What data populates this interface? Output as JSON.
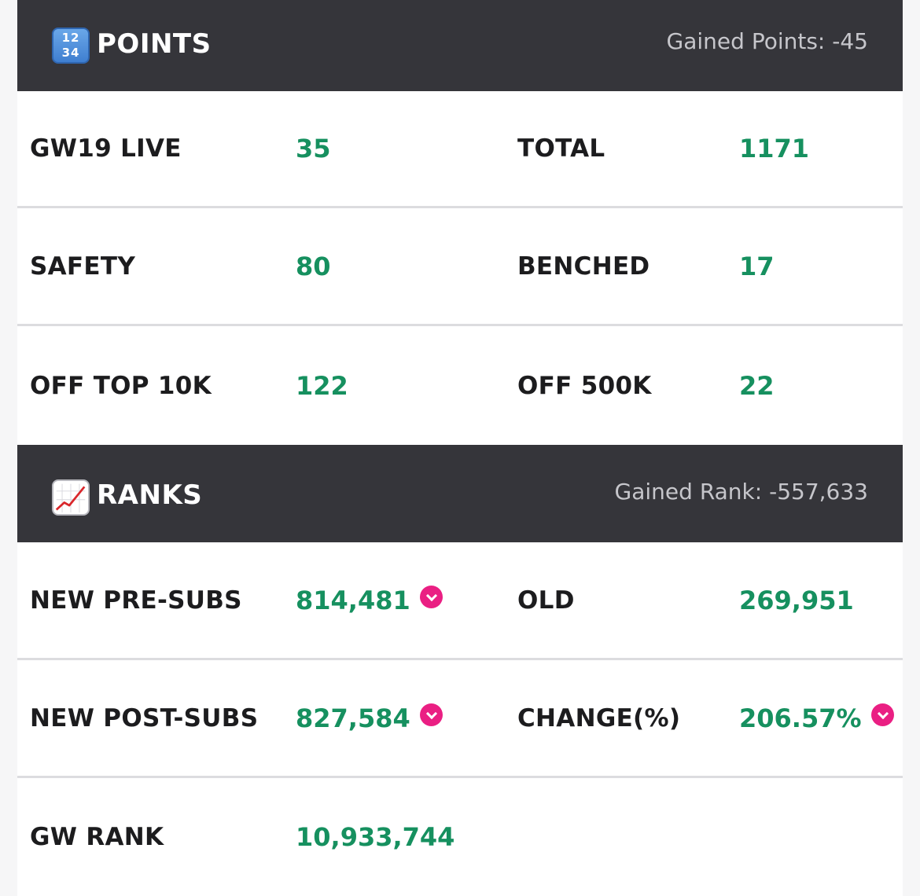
{
  "points": {
    "title": "POINTS",
    "icon": "keycap-1234-icon",
    "icon_text_top": "12",
    "icon_text_bottom": "34",
    "gained": "Gained Points: -45",
    "rows": [
      {
        "label_a": "GW19 LIVE",
        "value_a": "35",
        "label_b": "TOTAL",
        "value_b": "1171"
      },
      {
        "label_a": "SAFETY",
        "value_a": "80",
        "label_b": "BENCHED",
        "value_b": "17"
      },
      {
        "label_a": "OFF TOP 10K",
        "value_a": "122",
        "label_b": "OFF 500K",
        "value_b": "22"
      }
    ]
  },
  "ranks": {
    "title": "RANKS",
    "icon": "chart-increasing-icon",
    "gained": "Gained Rank: -557,633",
    "rows": [
      {
        "label_a": "NEW PRE-SUBS",
        "value_a": "814,481",
        "label_b": "OLD",
        "value_b": "269,951"
      },
      {
        "label_a": "NEW POST-SUBS",
        "value_a": "827,584",
        "label_b": "CHANGE(%)",
        "value_b": "206.57%"
      },
      {
        "label_a": "GW RANK",
        "value_a": "10,933,744"
      }
    ]
  },
  "colors": {
    "header_bg": "#35353a",
    "value_green": "#16905f",
    "down_indicator": "#ea1f83",
    "divider": "#dcdcdf"
  }
}
